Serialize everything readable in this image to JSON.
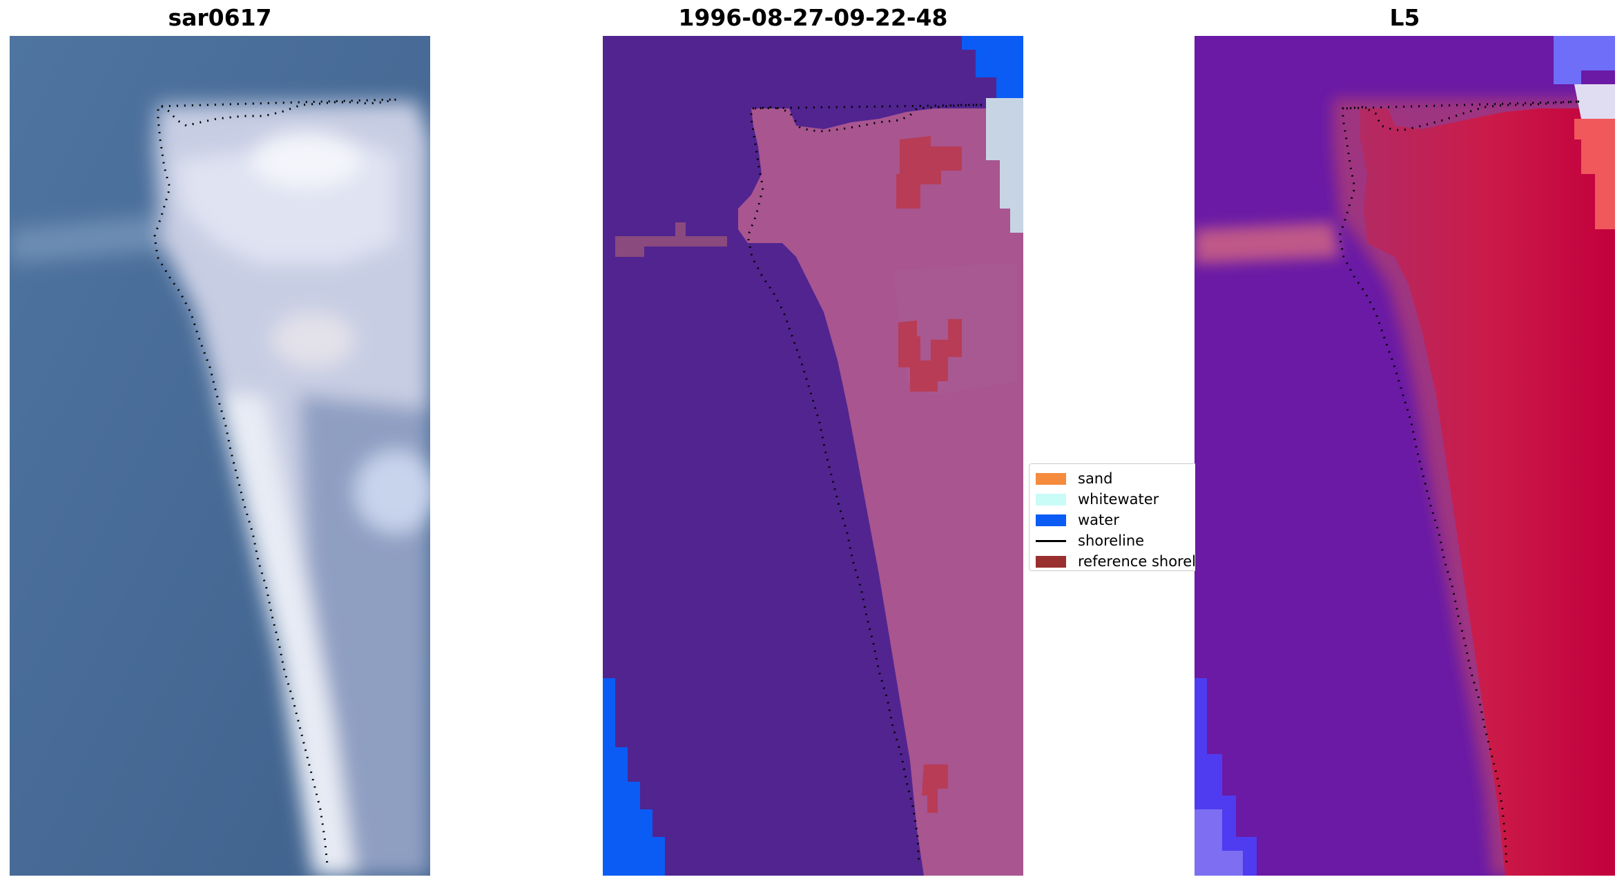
{
  "panels": {
    "rgb": {
      "title": "sar0617"
    },
    "classification": {
      "title": "1996-08-27-09-22-48"
    },
    "mndwi": {
      "title": "L5"
    }
  },
  "legend": {
    "items": [
      {
        "label": "sand",
        "color": "#f58b3d",
        "kind": "patch"
      },
      {
        "label": "whitewater",
        "color": "#c9fbf7",
        "kind": "patch"
      },
      {
        "label": "water",
        "color": "#0a5cf5",
        "kind": "patch"
      },
      {
        "label": "shoreline",
        "color": "#000000",
        "kind": "line"
      },
      {
        "label": "reference shoreline",
        "color": "#9a2f2f",
        "kind": "patch"
      }
    ]
  },
  "colors": {
    "rgb_water": "#456892",
    "rgb_spit": "#cfd5e8",
    "class_background": "#51248f",
    "class_land": "#a85590",
    "class_sand": "#b83c55",
    "class_water": "#0a5cf5",
    "mndwi_background": "#6a1aa5",
    "mndwi_land": "#c81c48",
    "mndwi_low": "#4f3cf0",
    "shoreline": "#000000"
  }
}
